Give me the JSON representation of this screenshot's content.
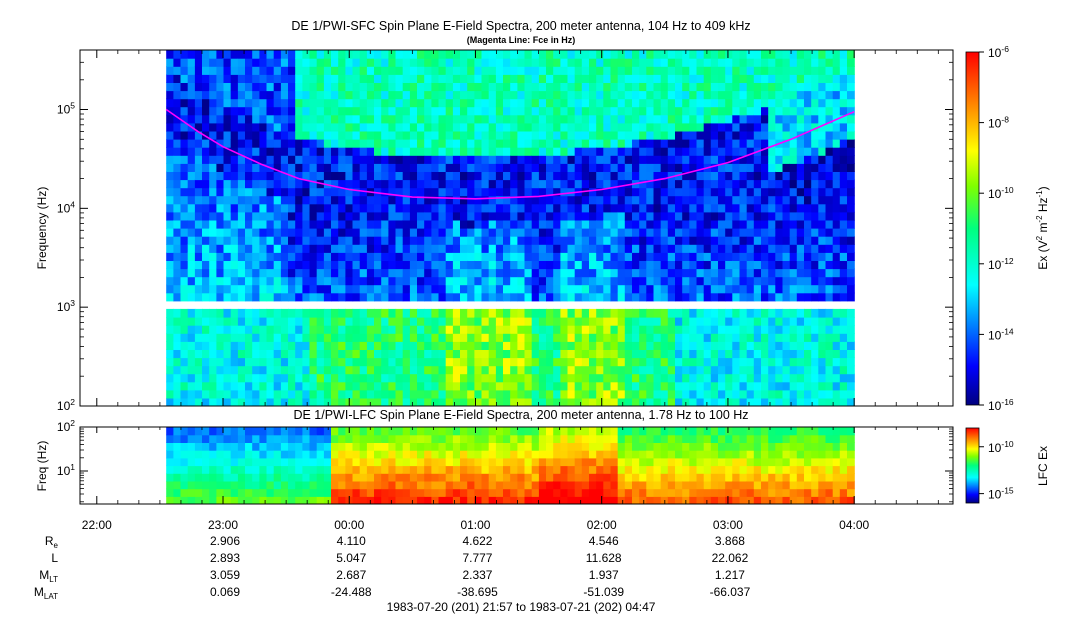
{
  "chart_data": [
    {
      "type": "heatmap",
      "title": "DE 1/PWI-SFC  Spin Plane E-Field Spectra, 200 meter antenna, 104 Hz to 409 kHz",
      "subtitle": "(Magenta Line: Fce in Hz)",
      "ylabel": "Frequency (Hz)",
      "yscale": "log",
      "ylim": [
        100,
        400000
      ],
      "y_ticks": [
        {
          "value": 100,
          "base": "10",
          "exp": "2"
        },
        {
          "value": 1000,
          "base": "10",
          "exp": "3"
        },
        {
          "value": 10000,
          "base": "10",
          "exp": "4"
        },
        {
          "value": 100000,
          "base": "10",
          "exp": "5"
        }
      ],
      "colorbar": {
        "label": "Ex (V² m⁻² Hz⁻¹)",
        "label_parts": [
          "Ex (V",
          "2",
          " m",
          "-2",
          " Hz",
          "-1",
          ")"
        ],
        "scale": "log",
        "range": [
          1e-16,
          1e-06
        ],
        "ticks": [
          {
            "value": 1e-06,
            "base": "10",
            "exp": "-6"
          },
          {
            "value": 1e-08,
            "base": "10",
            "exp": "-8"
          },
          {
            "value": 1e-10,
            "base": "10",
            "exp": "-10"
          },
          {
            "value": 1e-12,
            "base": "10",
            "exp": "-12"
          },
          {
            "value": 1e-14,
            "base": "10",
            "exp": "-14"
          },
          {
            "value": 1e-16,
            "base": "10",
            "exp": "-16"
          }
        ],
        "colors": [
          "#00007f",
          "#0000ff",
          "#007fff",
          "#00ffff",
          "#00ff7f",
          "#7fff00",
          "#ffff00",
          "#ff7f00",
          "#ff0000",
          "#7f0000"
        ]
      },
      "data_span_hours": [
        0.55,
        6.0
      ],
      "gap_band_hz": [
        900,
        1080
      ],
      "fce_line": {
        "color": "#ff00ff",
        "hours": [
          0.55,
          0.8,
          1.0,
          1.3,
          1.6,
          2.0,
          2.5,
          3.0,
          3.5,
          4.0,
          4.5,
          5.0,
          5.5,
          6.0
        ],
        "hz": [
          100000,
          60000,
          42000,
          28000,
          20000,
          15500,
          13000,
          12500,
          13200,
          15500,
          20000,
          29000,
          50000,
          95000
        ]
      }
    },
    {
      "type": "heatmap",
      "title": "DE 1/PWI-LFC  Spin Plane E-Field Spectra, 200 meter antenna, 1.78 Hz to 100 Hz",
      "ylabel": "Freq (Hz)",
      "yscale": "log",
      "ylim": [
        1.78,
        100
      ],
      "y_ticks": [
        {
          "value": 10,
          "base": "10",
          "exp": "1"
        },
        {
          "value": 100,
          "base": "10",
          "exp": "2"
        }
      ],
      "colorbar": {
        "label": "LFC Ex",
        "scale": "log",
        "range": [
          1e-16,
          1e-08
        ],
        "ticks": [
          {
            "value": 1e-10,
            "base": "10",
            "exp": "-10"
          },
          {
            "value": 1e-15,
            "base": "10",
            "exp": "-15"
          }
        ]
      },
      "data_span_hours": [
        0.55,
        6.0
      ]
    }
  ],
  "x_axis": {
    "range_hours": [
      -0.133,
      6.783
    ],
    "ticks": [
      {
        "hours": 0,
        "label": "22:00"
      },
      {
        "hours": 1,
        "label": "23:00"
      },
      {
        "hours": 2,
        "label": "00:00"
      },
      {
        "hours": 3,
        "label": "01:00"
      },
      {
        "hours": 4,
        "label": "02:00"
      },
      {
        "hours": 5,
        "label": "03:00"
      },
      {
        "hours": 6,
        "label": "04:00"
      }
    ]
  },
  "ephemeris": {
    "rows": [
      {
        "name": "Re",
        "base": "R",
        "sub": "e",
        "values": [
          "2.906",
          "4.110",
          "4.622",
          "4.546",
          "3.868"
        ]
      },
      {
        "name": "L",
        "base": "L",
        "sub": "",
        "values": [
          "2.893",
          "5.047",
          "7.777",
          "11.628",
          "22.062"
        ]
      },
      {
        "name": "MLT",
        "base": "M",
        "sub": "LT",
        "values": [
          "3.059",
          "2.687",
          "2.337",
          "1.937",
          "1.217"
        ]
      },
      {
        "name": "MLAT",
        "base": "M",
        "sub": "LAT",
        "values": [
          "0.069",
          "-24.488",
          "-38.695",
          "-51.039",
          "-66.037"
        ]
      }
    ]
  },
  "time_range": "1983-07-20 (201) 21:57 to 1983-07-21 (202) 04:47"
}
